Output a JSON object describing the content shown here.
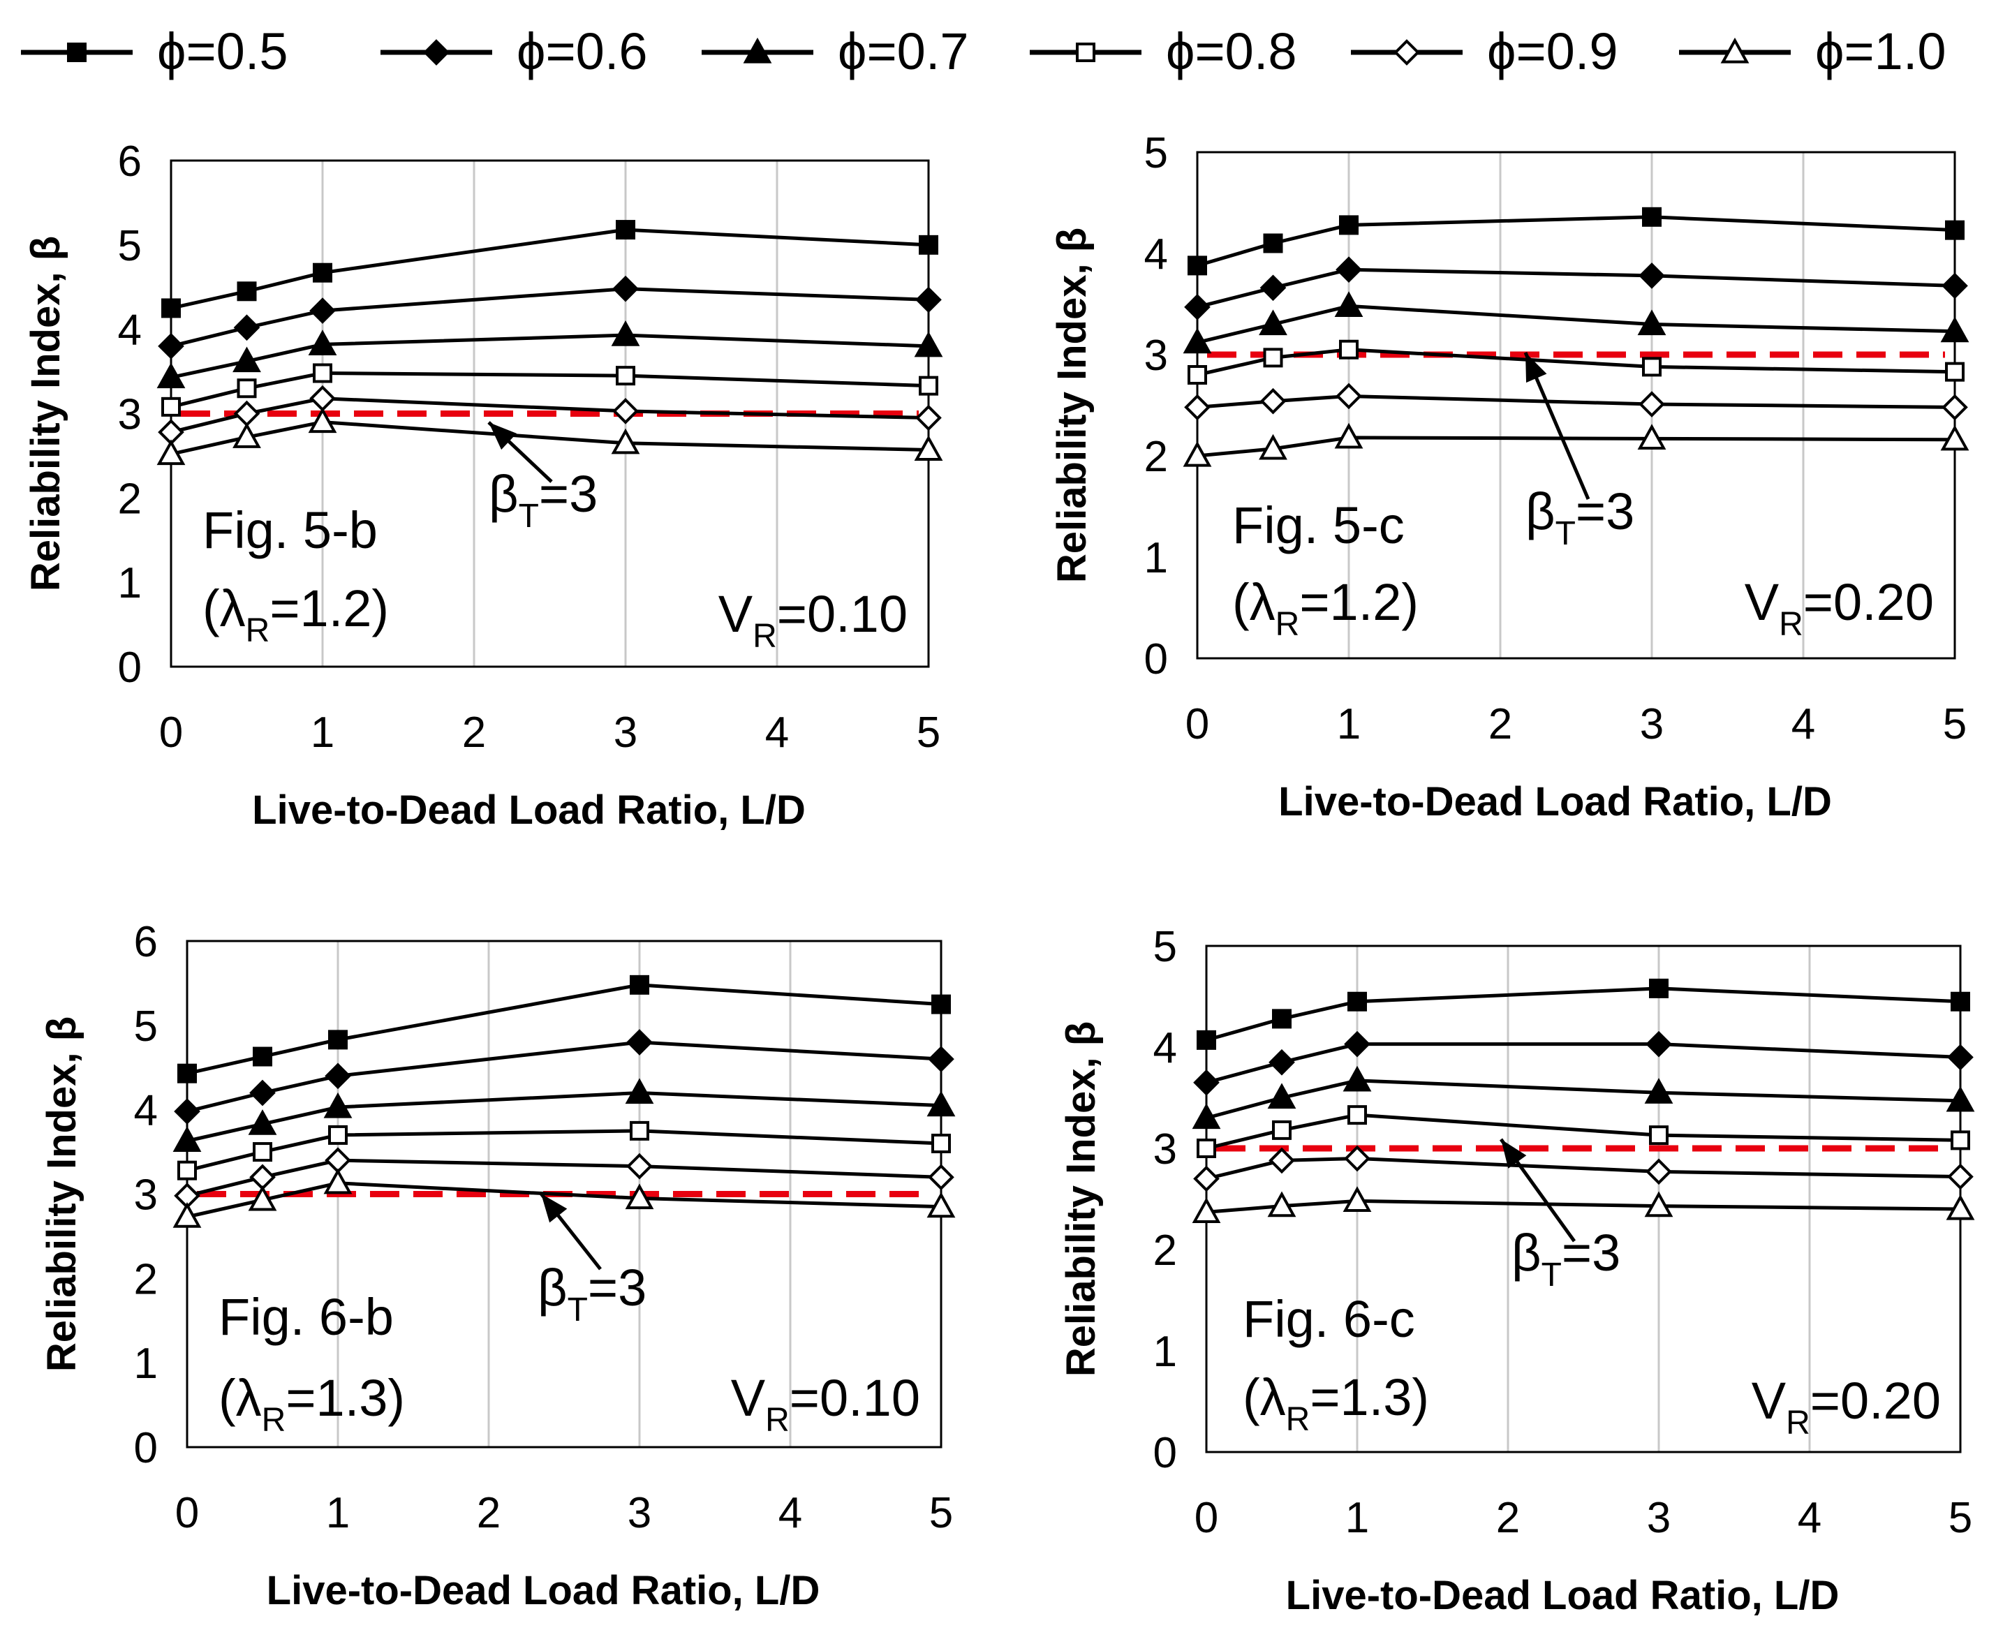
{
  "legend": [
    {
      "label": "ϕ=0.5",
      "marker": "square-filled"
    },
    {
      "label": "ϕ=0.6",
      "marker": "diamond-filled"
    },
    {
      "label": "ϕ=0.7",
      "marker": "triangle-filled"
    },
    {
      "label": "ϕ=0.8",
      "marker": "square-open"
    },
    {
      "label": "ϕ=0.9",
      "marker": "diamond-open"
    },
    {
      "label": "ϕ=1.0",
      "marker": "triangle-open"
    }
  ],
  "colors": {
    "series": "#000000",
    "target": "#e8000f",
    "grid": "#c8c8c8"
  },
  "chart_data": [
    {
      "type": "line",
      "x": [
        0,
        0.5,
        1,
        3,
        5
      ],
      "xlim": [
        0,
        5
      ],
      "ylim": [
        0,
        6
      ],
      "xticks": [
        "0",
        "1",
        "2",
        "3",
        "4",
        "5"
      ],
      "yticks": [
        "0",
        "1",
        "2",
        "3",
        "4",
        "5",
        "6"
      ],
      "xlabel": "Live-to-Dead Load Ratio, L/D",
      "ylabel": "Reliability Index, β",
      "fig_label": "Fig. 5-b",
      "lambda_pre": "(λ",
      "lambda_sub": "R",
      "lambda_post": "=1.2)",
      "v_pre": "V",
      "v_sub": "R",
      "v_post": "=0.10",
      "target_pre": "β",
      "target_sub": "T",
      "target_post": "=3",
      "target_value": 3,
      "series": [
        {
          "name": "ϕ=0.5",
          "values": [
            4.25,
            4.45,
            4.67,
            5.18,
            5.0
          ]
        },
        {
          "name": "ϕ=0.6",
          "values": [
            3.8,
            4.02,
            4.22,
            4.48,
            4.35
          ]
        },
        {
          "name": "ϕ=0.7",
          "values": [
            3.43,
            3.62,
            3.82,
            3.93,
            3.8
          ]
        },
        {
          "name": "ϕ=0.8",
          "values": [
            3.08,
            3.3,
            3.48,
            3.45,
            3.33
          ]
        },
        {
          "name": "ϕ=0.9",
          "values": [
            2.78,
            3.0,
            3.18,
            3.03,
            2.95
          ]
        },
        {
          "name": "ϕ=1.0",
          "values": [
            2.52,
            2.72,
            2.9,
            2.65,
            2.57
          ]
        }
      ]
    },
    {
      "type": "line",
      "x": [
        0,
        0.5,
        1,
        3,
        5
      ],
      "xlim": [
        0,
        5
      ],
      "ylim": [
        0,
        5
      ],
      "xticks": [
        "0",
        "1",
        "2",
        "3",
        "4",
        "5"
      ],
      "yticks": [
        "0",
        "1",
        "2",
        "3",
        "4",
        "5"
      ],
      "xlabel": "Live-to-Dead Load Ratio, L/D",
      "ylabel": "Reliability Index, β",
      "fig_label": "Fig. 5-c",
      "lambda_pre": "(λ",
      "lambda_sub": "R",
      "lambda_post": "=1.2)",
      "v_pre": "V",
      "v_sub": "R",
      "v_post": "=0.20",
      "target_pre": "β",
      "target_sub": "T",
      "target_post": "=3",
      "target_value": 3,
      "series": [
        {
          "name": "ϕ=0.5",
          "values": [
            3.88,
            4.1,
            4.28,
            4.36,
            4.23
          ]
        },
        {
          "name": "ϕ=0.6",
          "values": [
            3.47,
            3.66,
            3.84,
            3.78,
            3.68
          ]
        },
        {
          "name": "ϕ=0.7",
          "values": [
            3.12,
            3.3,
            3.48,
            3.3,
            3.23
          ]
        },
        {
          "name": "ϕ=0.8",
          "values": [
            2.8,
            2.97,
            3.05,
            2.88,
            2.83
          ]
        },
        {
          "name": "ϕ=0.9",
          "values": [
            2.48,
            2.54,
            2.59,
            2.51,
            2.48
          ]
        },
        {
          "name": "ϕ=1.0",
          "values": [
            2.0,
            2.07,
            2.18,
            2.17,
            2.16
          ]
        }
      ]
    },
    {
      "type": "line",
      "x": [
        0,
        0.5,
        1,
        3,
        5
      ],
      "xlim": [
        0,
        5
      ],
      "ylim": [
        0,
        6
      ],
      "xticks": [
        "0",
        "1",
        "2",
        "3",
        "4",
        "5"
      ],
      "yticks": [
        "0",
        "1",
        "2",
        "3",
        "4",
        "5",
        "6"
      ],
      "xlabel": "Live-to-Dead Load Ratio, L/D",
      "ylabel": "Reliability Index, β",
      "fig_label": "Fig. 6-b",
      "lambda_pre": "(λ",
      "lambda_sub": "R",
      "lambda_post": "=1.3)",
      "v_pre": "V",
      "v_sub": "R",
      "v_post": "=0.10",
      "target_pre": "β",
      "target_sub": "T",
      "target_post": "=3",
      "target_value": 3,
      "series": [
        {
          "name": "ϕ=0.5",
          "values": [
            4.43,
            4.63,
            4.83,
            5.48,
            5.25
          ]
        },
        {
          "name": "ϕ=0.6",
          "values": [
            3.98,
            4.2,
            4.4,
            4.8,
            4.6
          ]
        },
        {
          "name": "ϕ=0.7",
          "values": [
            3.63,
            3.83,
            4.03,
            4.2,
            4.05
          ]
        },
        {
          "name": "ϕ=0.8",
          "values": [
            3.28,
            3.5,
            3.7,
            3.75,
            3.6
          ]
        },
        {
          "name": "ϕ=0.9",
          "values": [
            2.98,
            3.2,
            3.4,
            3.33,
            3.2
          ]
        },
        {
          "name": "ϕ=1.0",
          "values": [
            2.73,
            2.93,
            3.13,
            2.95,
            2.85
          ]
        }
      ]
    },
    {
      "type": "line",
      "x": [
        0,
        0.5,
        1,
        3,
        5
      ],
      "xlim": [
        0,
        5
      ],
      "ylim": [
        0,
        5
      ],
      "xticks": [
        "0",
        "1",
        "2",
        "3",
        "4",
        "5"
      ],
      "yticks": [
        "0",
        "1",
        "2",
        "3",
        "4",
        "5"
      ],
      "xlabel": "Live-to-Dead Load Ratio, L/D",
      "ylabel": "Reliability Index, β",
      "fig_label": "Fig. 6-c",
      "lambda_pre": "(λ",
      "lambda_sub": "R",
      "lambda_post": "=1.3)",
      "v_pre": "V",
      "v_sub": "R",
      "v_post": "=0.20",
      "target_pre": "β",
      "target_sub": "T",
      "target_post": "=3",
      "target_value": 3,
      "series": [
        {
          "name": "ϕ=0.5",
          "values": [
            4.07,
            4.28,
            4.45,
            4.58,
            4.45
          ]
        },
        {
          "name": "ϕ=0.6",
          "values": [
            3.65,
            3.85,
            4.03,
            4.03,
            3.9
          ]
        },
        {
          "name": "ϕ=0.7",
          "values": [
            3.3,
            3.5,
            3.67,
            3.55,
            3.47
          ]
        },
        {
          "name": "ϕ=0.8",
          "values": [
            3.0,
            3.18,
            3.33,
            3.13,
            3.08
          ]
        },
        {
          "name": "ϕ=0.9",
          "values": [
            2.7,
            2.88,
            2.9,
            2.77,
            2.72
          ]
        },
        {
          "name": "ϕ=1.0",
          "values": [
            2.37,
            2.43,
            2.48,
            2.43,
            2.4
          ]
        }
      ]
    }
  ]
}
